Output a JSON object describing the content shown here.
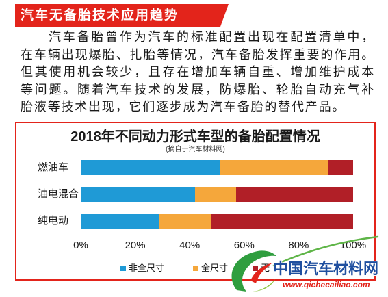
{
  "theme": {
    "accent_red": "#e3241b",
    "text": "#1a1a1a",
    "background": "#ffffff"
  },
  "header": {
    "title": "汽车无备胎技术应用趋势"
  },
  "article": {
    "lines": [
      "汽车备胎曾作为汽车的标准配置出现在配置清单中，",
      "在车辆出现爆胎、扎胎等情况，汽车备胎发挥重要的作用。",
      "但其使用机会较少，且存在增加车辆自重、增加维护成本",
      "等问题。随着汽车技术的发展，防爆胎、轮胎自动充气补",
      "胎液等技术出现，它们逐步成为汽车备胎的替代产品。"
    ]
  },
  "chart_data": {
    "type": "bar",
    "orientation": "horizontal",
    "stacked": true,
    "title": "2018年不同动力形式车型的备胎配置情况",
    "subtitle": "(摘自于汽车材料网)",
    "categories": [
      "燃油车",
      "油电混合",
      "纯电动"
    ],
    "series": [
      {
        "name": "非全尺寸",
        "color": "#1f9ad6",
        "values": [
          51,
          42,
          29
        ]
      },
      {
        "name": "全尺寸",
        "color": "#f5a73b",
        "values": [
          40,
          15,
          19
        ]
      },
      {
        "name": "无",
        "color": "#b11f27",
        "values": [
          9,
          43,
          52
        ]
      }
    ],
    "xlim": [
      0,
      100
    ],
    "x_ticks": [
      0,
      20,
      40,
      60,
      80,
      100
    ],
    "x_tick_labels": [
      "0%",
      "20%",
      "40%",
      "60%",
      "80%",
      "100%"
    ],
    "grid": false,
    "legend_position": "bottom"
  },
  "watermark": {
    "logo_icon": "green-swirl-logo",
    "site_name": "中国汽车材料网",
    "site_url": "www.qichecailiao.com"
  }
}
